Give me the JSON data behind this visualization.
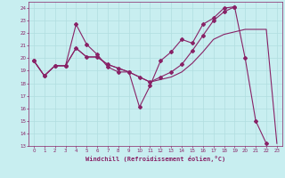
{
  "xlabel": "Windchill (Refroidissement éolien,°C)",
  "bg_color": "#c8eef0",
  "grid_color": "#b0dde0",
  "line_color": "#882266",
  "xlim": [
    -0.5,
    23.5
  ],
  "ylim": [
    13,
    24.5
  ],
  "xticks": [
    0,
    1,
    2,
    3,
    4,
    5,
    6,
    7,
    8,
    9,
    10,
    11,
    12,
    13,
    14,
    15,
    16,
    17,
    18,
    19,
    20,
    21,
    22,
    23
  ],
  "yticks": [
    13,
    14,
    15,
    16,
    17,
    18,
    19,
    20,
    21,
    22,
    23,
    24
  ],
  "series": [
    {
      "x": [
        0,
        1,
        2,
        3,
        4,
        5,
        6,
        7,
        8,
        9,
        10,
        11,
        12,
        13,
        14,
        15,
        16,
        17,
        18,
        19,
        20,
        21,
        22,
        23
      ],
      "y": [
        19.8,
        18.6,
        19.4,
        19.4,
        20.8,
        20.1,
        20.1,
        19.5,
        19.2,
        18.9,
        18.5,
        18.1,
        18.3,
        18.5,
        18.9,
        19.6,
        20.5,
        21.5,
        21.9,
        22.1,
        22.3,
        22.3,
        22.3,
        13.2
      ],
      "marker": false
    },
    {
      "x": [
        0,
        1,
        2,
        3,
        4,
        5,
        6,
        7,
        8,
        9,
        10,
        11,
        12,
        13,
        14,
        15,
        16,
        17,
        18,
        19,
        20,
        21,
        22
      ],
      "y": [
        19.8,
        18.6,
        19.4,
        19.4,
        22.7,
        21.1,
        20.3,
        19.3,
        18.9,
        18.9,
        16.1,
        17.8,
        19.8,
        20.5,
        21.5,
        21.2,
        22.7,
        23.2,
        24.0,
        24.1,
        20.0,
        15.0,
        13.2
      ],
      "marker": true
    },
    {
      "x": [
        0,
        1,
        2,
        3,
        4,
        5,
        6,
        7,
        8,
        9,
        10,
        11,
        12,
        13,
        14,
        15,
        16,
        17,
        18,
        19
      ],
      "y": [
        19.8,
        18.6,
        19.4,
        19.4,
        20.8,
        20.1,
        20.1,
        19.5,
        19.2,
        18.9,
        18.5,
        18.1,
        18.5,
        18.9,
        19.5,
        20.6,
        21.8,
        23.0,
        23.7,
        24.1
      ],
      "marker": true
    }
  ]
}
